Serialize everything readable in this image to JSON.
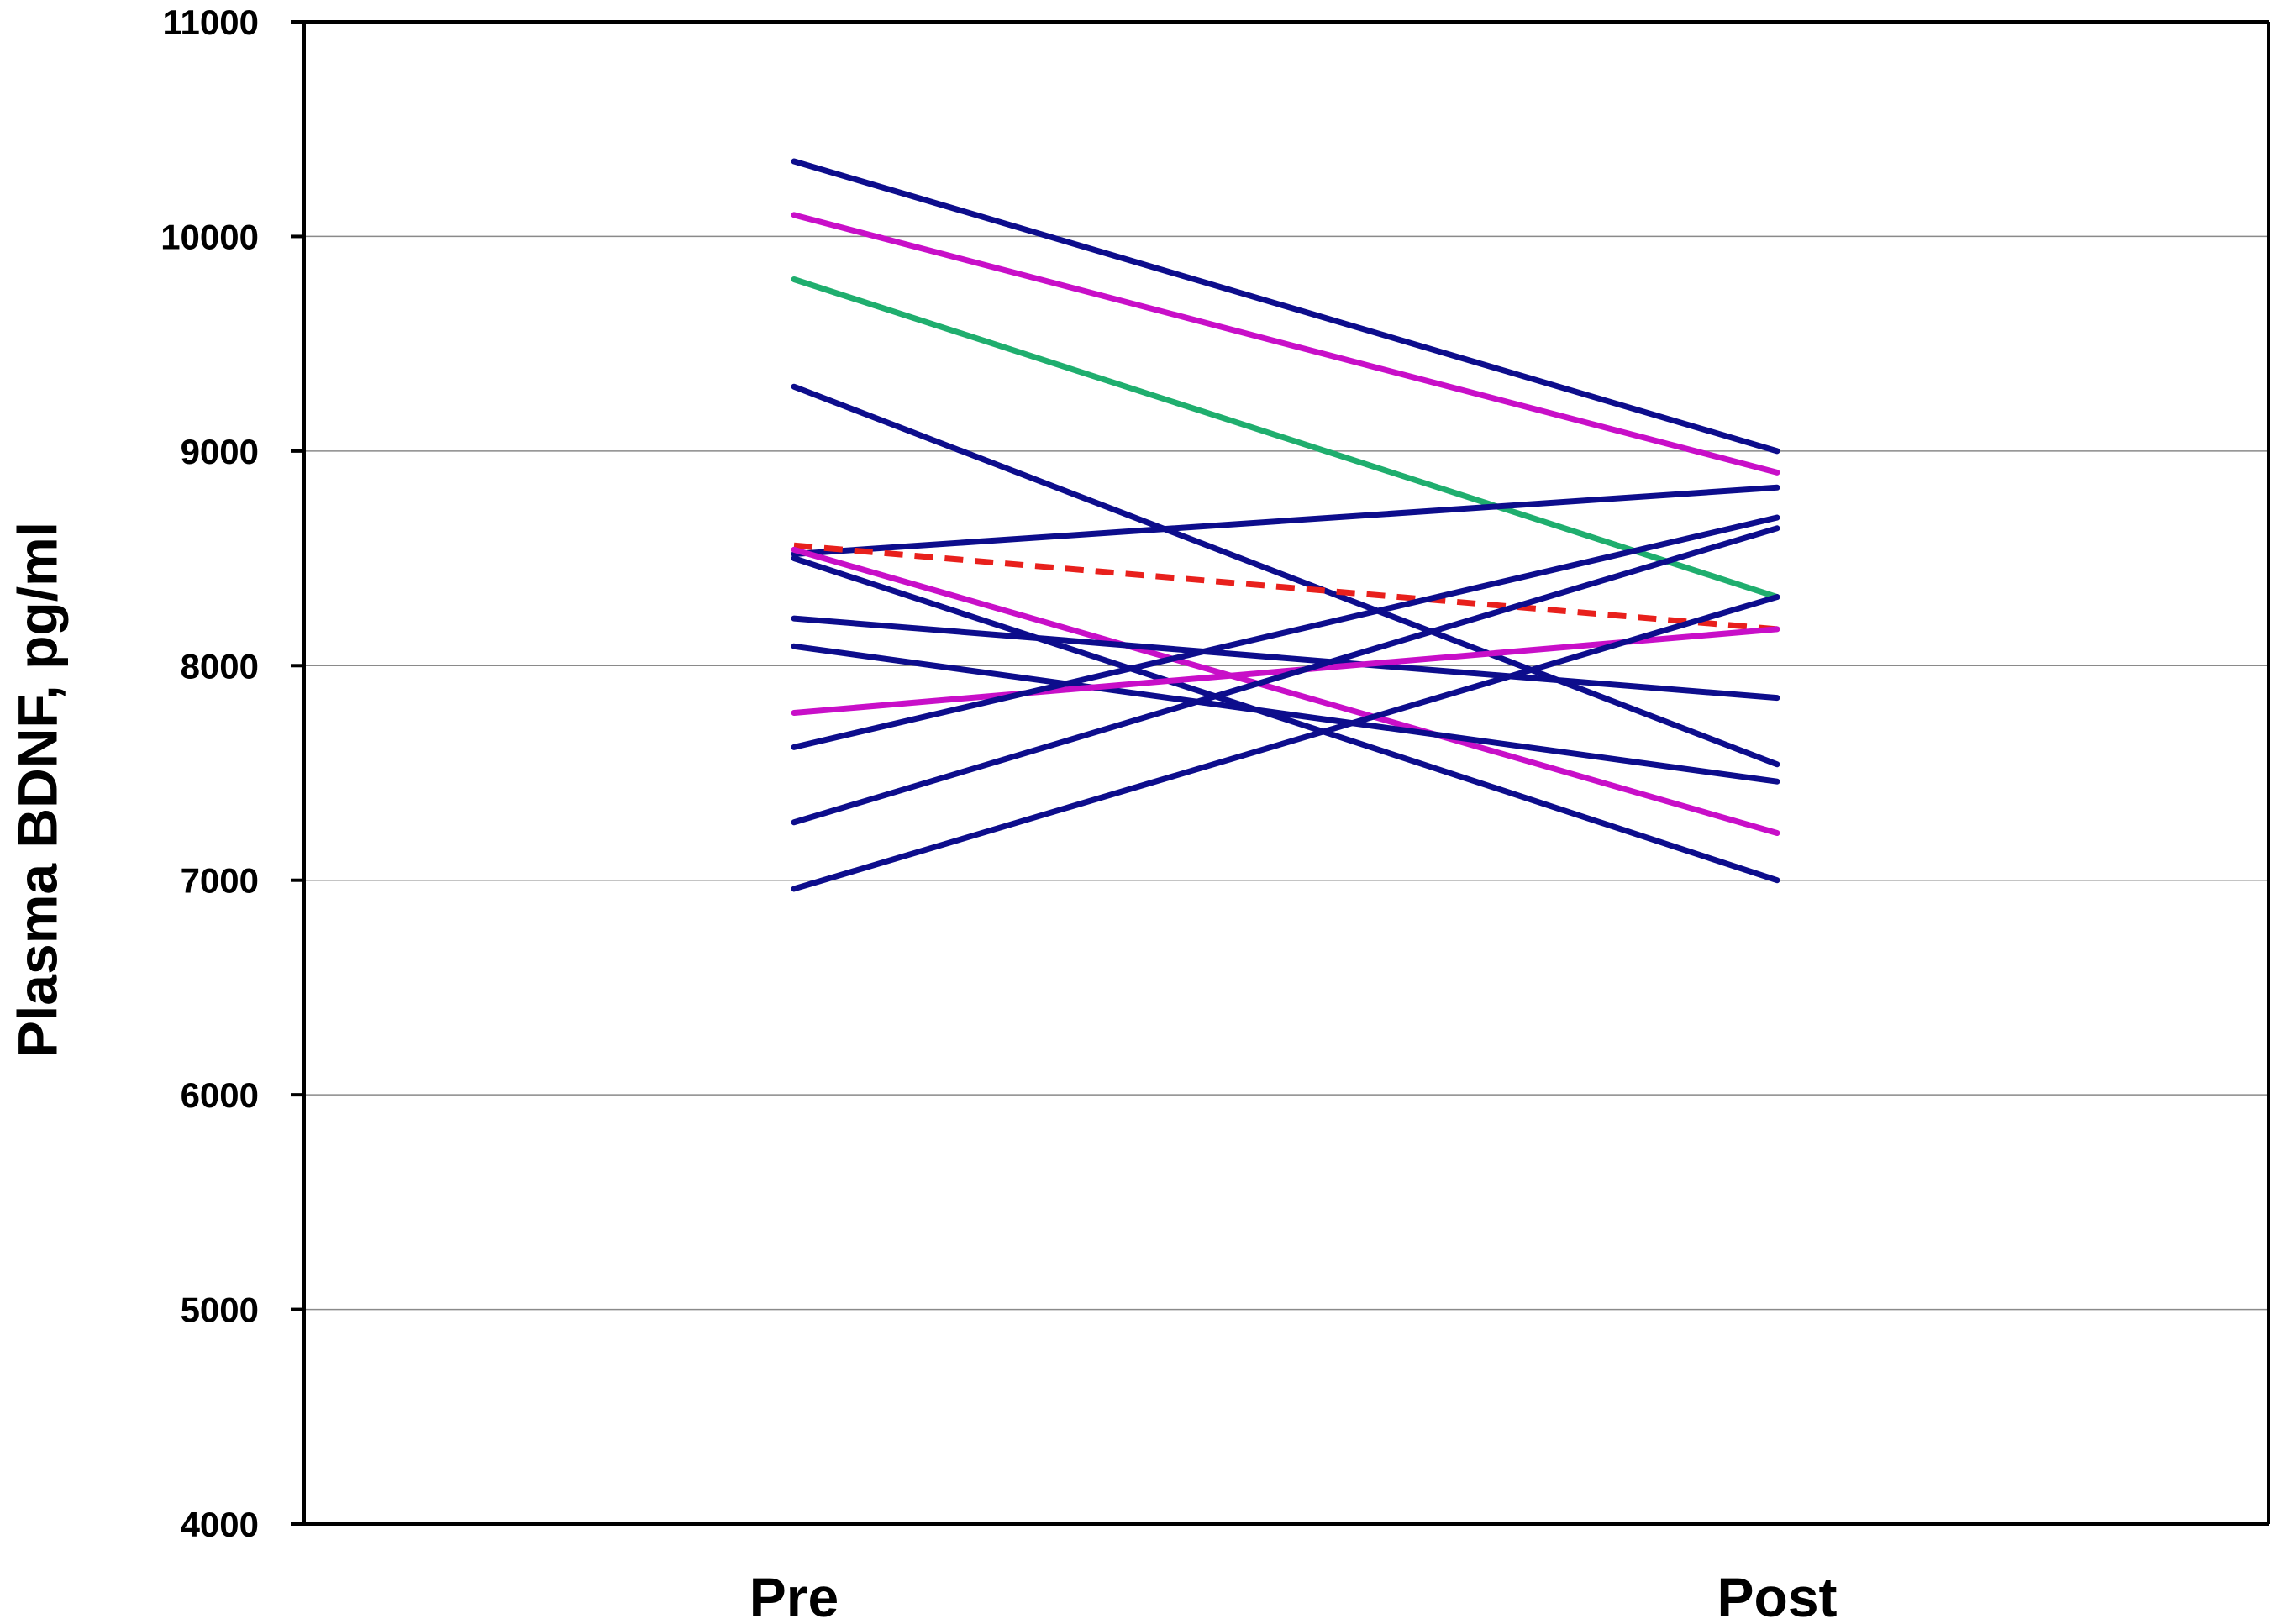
{
  "chart_data": {
    "type": "line",
    "categories": [
      "Pre",
      "Post"
    ],
    "ylabel": "Plasma BDNF, pg/ml",
    "xlabel": "",
    "ylim": [
      4000,
      11000
    ],
    "yticks": [
      4000,
      5000,
      6000,
      7000,
      8000,
      9000,
      10000,
      11000
    ],
    "grid": true,
    "legend": "none",
    "series": [
      {
        "values": [
          10350,
          9000
        ],
        "color": "#0d0d8c",
        "style": "solid"
      },
      {
        "values": [
          10100,
          8900
        ],
        "color": "#c80fc8",
        "style": "solid"
      },
      {
        "values": [
          9800,
          8320
        ],
        "color": "#1fae6e",
        "style": "solid"
      },
      {
        "values": [
          9300,
          7540
        ],
        "color": "#0d0d8c",
        "style": "solid"
      },
      {
        "values": [
          8520,
          8830
        ],
        "color": "#0d0d8c",
        "style": "solid"
      },
      {
        "values": [
          8560,
          8170
        ],
        "color": "#e8201c",
        "style": "dashed"
      },
      {
        "values": [
          8540,
          7220
        ],
        "color": "#c80fc8",
        "style": "solid"
      },
      {
        "values": [
          8500,
          7000
        ],
        "color": "#0d0d8c",
        "style": "solid"
      },
      {
        "values": [
          8220,
          7850
        ],
        "color": "#0d0d8c",
        "style": "solid"
      },
      {
        "values": [
          8090,
          7460
        ],
        "color": "#0d0d8c",
        "style": "solid"
      },
      {
        "values": [
          7780,
          8170
        ],
        "color": "#c80fc8",
        "style": "solid"
      },
      {
        "values": [
          7620,
          8690
        ],
        "color": "#0d0d8c",
        "style": "solid"
      },
      {
        "values": [
          7270,
          8640
        ],
        "color": "#0d0d8c",
        "style": "solid"
      },
      {
        "values": [
          6960,
          8320
        ],
        "color": "#0d0d8c",
        "style": "solid"
      }
    ]
  }
}
